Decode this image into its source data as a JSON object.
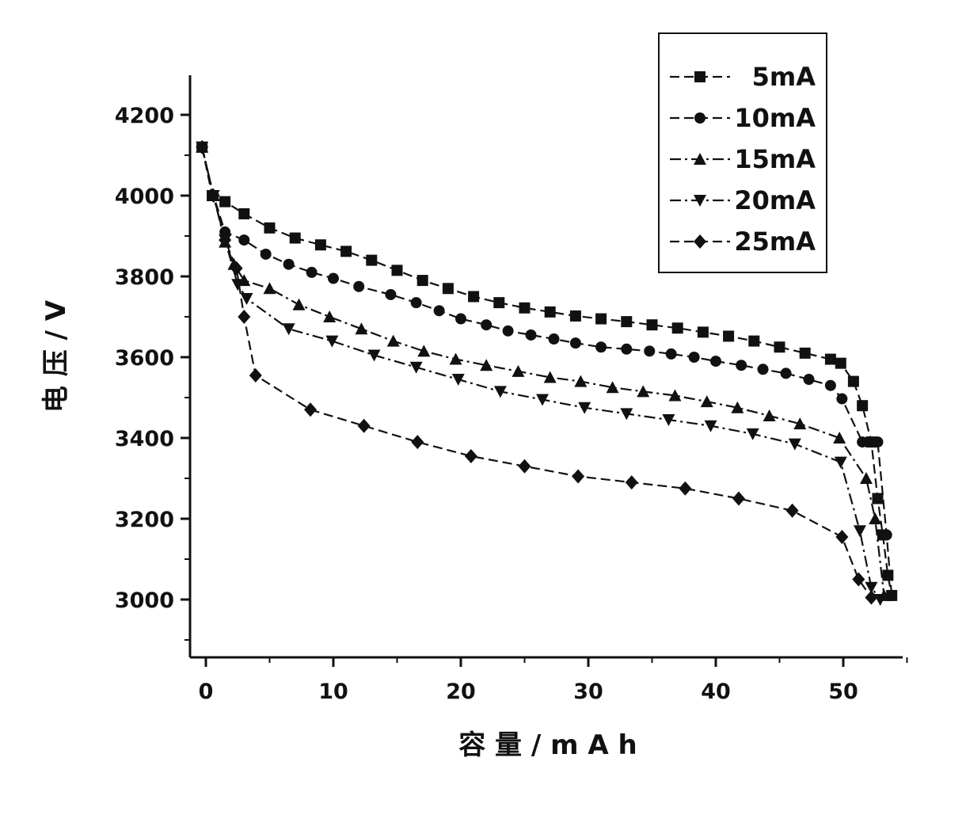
{
  "chart_data": {
    "type": "line",
    "xlabel": "容 量 / m A h",
    "ylabel": "电 压 / V",
    "xlim": [
      -1,
      55
    ],
    "ylim": [
      2850,
      4300
    ],
    "x_ticks": [
      0,
      10,
      20,
      30,
      40,
      50
    ],
    "y_ticks": [
      3000,
      3200,
      3400,
      3600,
      3800,
      4000,
      4200
    ],
    "grid": false,
    "legend_position": "top-right",
    "series": [
      {
        "name": "5mA",
        "marker": "square",
        "x": [
          -0.3,
          0.5,
          1.5,
          3,
          5,
          7,
          9,
          11,
          13,
          15,
          17,
          19,
          21,
          23,
          25,
          27,
          29,
          31,
          33,
          35,
          37,
          39,
          41,
          43,
          45,
          47,
          49,
          49.8,
          50.8,
          51.5,
          52.2,
          52.7,
          53.1,
          53.5,
          53.8
        ],
        "y": [
          4120,
          4000,
          3985,
          3955,
          3920,
          3895,
          3878,
          3862,
          3840,
          3815,
          3790,
          3770,
          3750,
          3735,
          3722,
          3712,
          3702,
          3695,
          3688,
          3680,
          3672,
          3662,
          3652,
          3640,
          3625,
          3610,
          3595,
          3585,
          3540,
          3480,
          3390,
          3250,
          3160,
          3060,
          3010
        ]
      },
      {
        "name": "10mA",
        "marker": "circle",
        "x": [
          -0.3,
          0.6,
          1.5,
          3,
          4.7,
          6.5,
          8.3,
          10,
          12,
          14.5,
          16.5,
          18.3,
          20,
          22,
          23.7,
          25.5,
          27.3,
          29,
          31,
          33,
          34.8,
          36.5,
          38.3,
          40,
          42,
          43.7,
          45.5,
          47.3,
          49,
          49.9,
          51.5,
          52.7,
          53.4,
          53.8
        ],
        "y": [
          4120,
          4000,
          3910,
          3890,
          3855,
          3830,
          3810,
          3795,
          3775,
          3755,
          3735,
          3715,
          3695,
          3680,
          3665,
          3655,
          3645,
          3635,
          3625,
          3620,
          3615,
          3608,
          3600,
          3590,
          3580,
          3570,
          3560,
          3545,
          3530,
          3497,
          3390,
          3390,
          3160,
          3010
        ]
      },
      {
        "name": "15mA",
        "marker": "triangle",
        "x": [
          -0.3,
          0.6,
          1.5,
          2.2,
          3,
          5,
          7.3,
          9.7,
          12.2,
          14.7,
          17.1,
          19.6,
          22,
          24.5,
          27,
          29.4,
          31.9,
          34.3,
          36.8,
          39.3,
          41.7,
          44.2,
          46.6,
          49.7,
          51.8,
          52.5,
          53.2
        ],
        "y": [
          4120,
          4000,
          3885,
          3830,
          3790,
          3770,
          3730,
          3700,
          3670,
          3640,
          3615,
          3595,
          3580,
          3565,
          3550,
          3540,
          3525,
          3515,
          3505,
          3490,
          3475,
          3455,
          3435,
          3400,
          3300,
          3200,
          3010
        ]
      },
      {
        "name": "20mA",
        "marker": "triangle-down",
        "x": [
          -0.3,
          0.6,
          1.5,
          2.5,
          3.2,
          6.5,
          9.9,
          13.2,
          16.5,
          19.8,
          23.1,
          26.4,
          29.7,
          33,
          36.3,
          39.6,
          42.9,
          46.2,
          49.8,
          51.3,
          52.2,
          52.9
        ],
        "y": [
          4120,
          4000,
          3890,
          3780,
          3745,
          3670,
          3640,
          3605,
          3575,
          3545,
          3515,
          3495,
          3475,
          3460,
          3445,
          3430,
          3410,
          3385,
          3340,
          3170,
          3030,
          3000
        ]
      },
      {
        "name": "25mA",
        "marker": "diamond",
        "x": [
          -0.3,
          0.6,
          1.5,
          2.4,
          3,
          3.9,
          8.2,
          12.4,
          16.6,
          20.8,
          25,
          29.2,
          33.4,
          37.6,
          41.8,
          46,
          49.9,
          51.2,
          52.2
        ],
        "y": [
          4120,
          4000,
          3890,
          3820,
          3700,
          3555,
          3470,
          3430,
          3390,
          3355,
          3330,
          3305,
          3290,
          3275,
          3250,
          3220,
          3155,
          3050,
          3005
        ]
      }
    ],
    "dash_patterns": [
      "12,6",
      "12,6",
      "14,5,3,5",
      "14,5,3,5",
      "12,6"
    ]
  }
}
